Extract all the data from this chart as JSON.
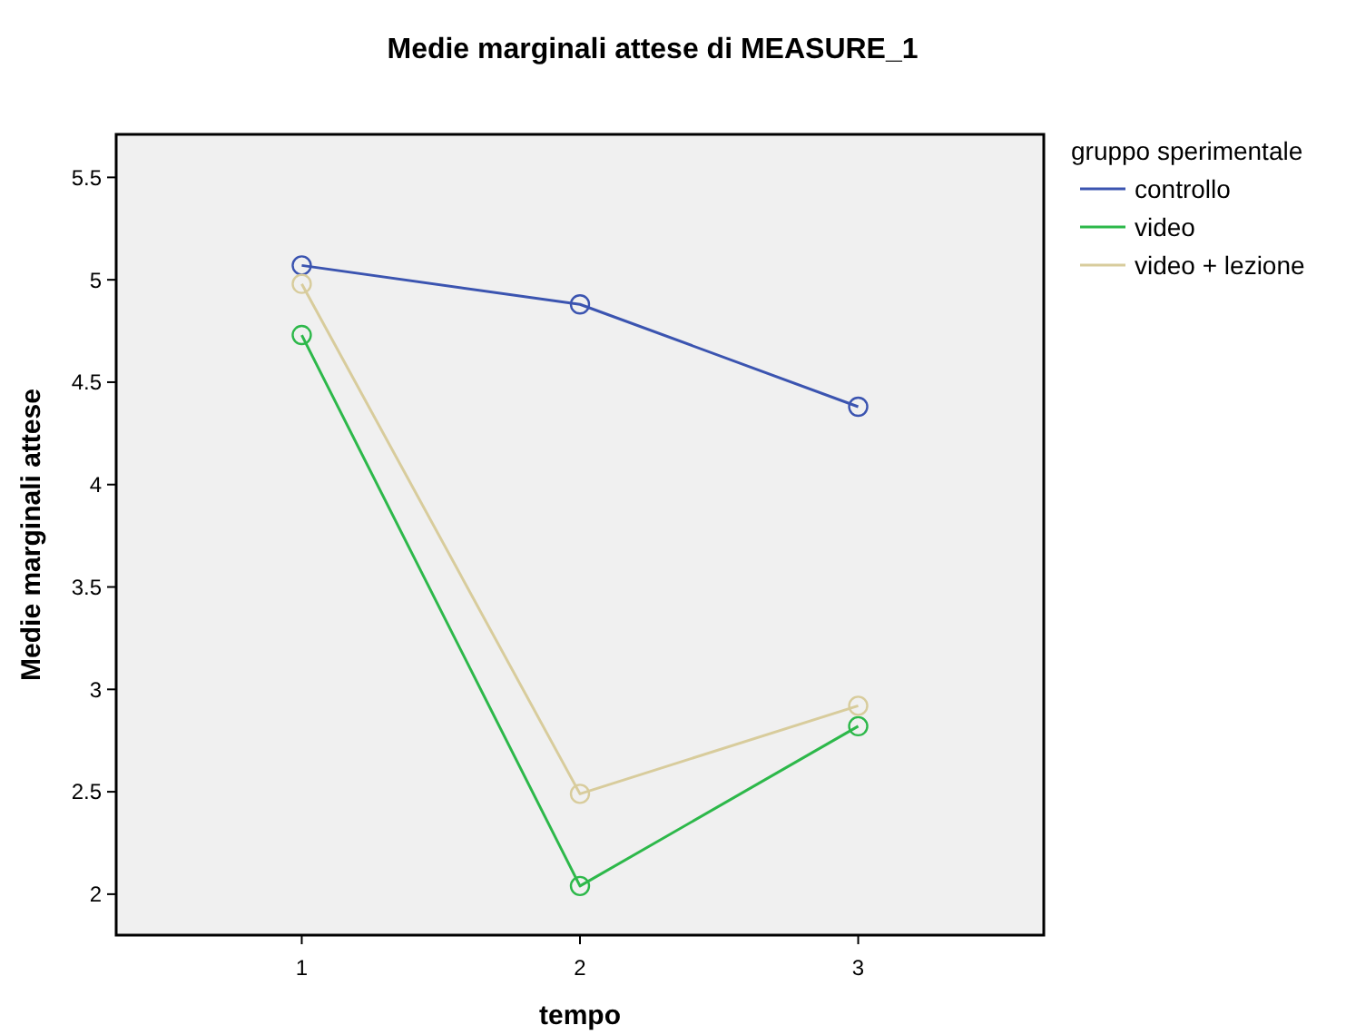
{
  "chart_data": {
    "type": "line",
    "title": "Medie marginali attese di MEASURE_1",
    "xlabel": "tempo",
    "ylabel": "Medie marginali attese",
    "legend_title": "gruppo sperimentale",
    "x": [
      1,
      2,
      3
    ],
    "xlim": [
      0.333,
      3.667
    ],
    "xticks": [
      1,
      2,
      3
    ],
    "ylim": [
      1.8,
      5.71
    ],
    "yticks": [
      {
        "value": 2,
        "label": "2"
      },
      {
        "value": 2.5,
        "label": "2.5"
      },
      {
        "value": 3,
        "label": "3"
      },
      {
        "value": 3.5,
        "label": "3.5"
      },
      {
        "value": 4,
        "label": "4"
      },
      {
        "value": 4.5,
        "label": "4.5"
      },
      {
        "value": 5,
        "label": "5"
      },
      {
        "value": 5.5,
        "label": "5.5"
      }
    ],
    "grid": false,
    "legend": "right",
    "marker": "circle",
    "line_style": "solid",
    "series": [
      {
        "name": "controllo",
        "color": "#3b54b0",
        "values": [
          5.07,
          4.88,
          4.38
        ]
      },
      {
        "name": "video",
        "color": "#2db84a",
        "values": [
          4.73,
          2.04,
          2.82
        ]
      },
      {
        "name": "video + lezione",
        "color": "#d8cc9c",
        "values": [
          4.98,
          2.49,
          2.92
        ]
      }
    ]
  }
}
